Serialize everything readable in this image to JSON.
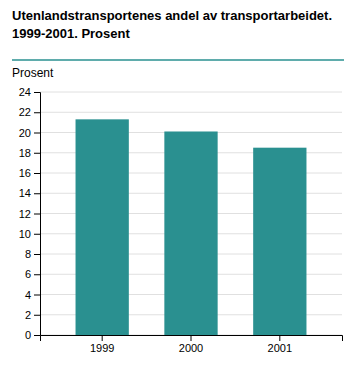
{
  "chart_data": {
    "type": "bar",
    "title": "Utenlandstransportenes andel av transportarbeidet.",
    "subtitle": "1999-2001. Prosent",
    "ylabel": "Prosent",
    "categories": [
      "1999",
      "2000",
      "2001"
    ],
    "values": [
      21.3,
      20.1,
      18.5
    ],
    "color": "#2a9090",
    "ylim": [
      0,
      24
    ],
    "yticks": [
      0,
      2,
      4,
      6,
      8,
      10,
      12,
      14,
      16,
      18,
      20,
      22,
      24
    ],
    "grid": true
  }
}
